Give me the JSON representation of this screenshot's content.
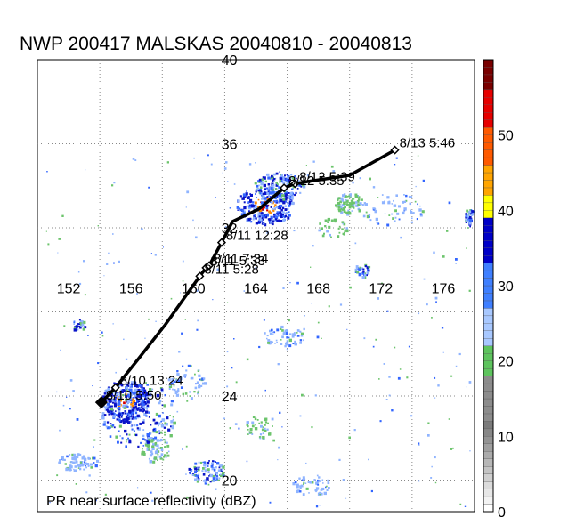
{
  "title": "NWP 200417 MALSKAS 20040810 - 20040813",
  "footer": "PR near surface reflectivity (dBZ)",
  "grid": {
    "lon_range": [
      150,
      178
    ],
    "lat_range": [
      18.5,
      40
    ],
    "lon_labels": [
      {
        "value": 152,
        "text": "152"
      },
      {
        "value": 156,
        "text": "156"
      },
      {
        "value": 160,
        "text": "160"
      },
      {
        "value": 164,
        "text": "164"
      },
      {
        "value": 168,
        "text": "168"
      },
      {
        "value": 172,
        "text": "172"
      },
      {
        "value": 176,
        "text": "176"
      }
    ],
    "lat_labels": [
      {
        "value": 40,
        "text": "40"
      },
      {
        "value": 36,
        "text": "36"
      },
      {
        "value": 32,
        "text": "32"
      },
      {
        "value": 24,
        "text": "24"
      },
      {
        "value": 20,
        "text": "20"
      }
    ],
    "lon_lines": [
      154,
      158,
      162,
      166,
      170,
      174
    ],
    "lat_lines": [
      20,
      24,
      28,
      32,
      36
    ]
  },
  "track": {
    "points": [
      {
        "lon": 154.1,
        "lat": 23.7
      },
      {
        "lon": 155.0,
        "lat": 24.4
      },
      {
        "lon": 156.4,
        "lat": 25.7
      },
      {
        "lon": 158.2,
        "lat": 27.4
      },
      {
        "lon": 160.4,
        "lat": 29.7
      },
      {
        "lon": 160.8,
        "lat": 30.1
      },
      {
        "lon": 161.0,
        "lat": 30.2
      },
      {
        "lon": 161.8,
        "lat": 31.3
      },
      {
        "lon": 162.5,
        "lat": 32.3
      },
      {
        "lon": 164.2,
        "lat": 32.9
      },
      {
        "lon": 165.8,
        "lat": 33.9
      },
      {
        "lon": 166.5,
        "lat": 34.1
      },
      {
        "lon": 167.3,
        "lat": 34.2
      },
      {
        "lon": 170.0,
        "lat": 34.5
      },
      {
        "lon": 172.9,
        "lat": 35.7
      }
    ],
    "markers": [
      {
        "lon": 154.1,
        "lat": 23.7,
        "label": "8/10 5:50",
        "label_text": "8/10"
      },
      {
        "lon": 155.0,
        "lat": 24.4,
        "label": "8/10 13:24"
      },
      {
        "lon": 160.4,
        "lat": 29.7,
        "label": "8/11 5:28"
      },
      {
        "lon": 160.8,
        "lat": 30.1,
        "label": "8/11 5:33"
      },
      {
        "lon": 161.0,
        "lat": 30.2,
        "label": "8/11 7:34"
      },
      {
        "lon": 161.8,
        "lat": 31.3,
        "label": "8/11 12:28"
      },
      {
        "lon": 165.8,
        "lat": 33.9,
        "label": "8/12 5:35"
      },
      {
        "lon": 166.5,
        "lat": 34.1,
        "label": "8/12 5:39"
      },
      {
        "lon": 172.9,
        "lat": 35.7,
        "label": "8/13 5:46"
      }
    ]
  },
  "colorbar": {
    "min": 0,
    "max": 60,
    "tick_labels": [
      {
        "value": 0,
        "text": "0"
      },
      {
        "value": 10,
        "text": "10"
      },
      {
        "value": 20,
        "text": "20"
      },
      {
        "value": 30,
        "text": "30"
      },
      {
        "value": 40,
        "text": "40"
      },
      {
        "value": 50,
        "text": "50"
      }
    ],
    "bands": [
      {
        "from": 0,
        "to": 12,
        "color": "#f0f0f0"
      },
      {
        "from": 12,
        "to": 18,
        "color": "#8c8c8c"
      },
      {
        "from": 18,
        "to": 22,
        "color": "#5ec45e"
      },
      {
        "from": 22,
        "to": 27,
        "color": "#a8c8ff"
      },
      {
        "from": 27,
        "to": 33,
        "color": "#3f7fff"
      },
      {
        "from": 33,
        "to": 39,
        "color": "#0000c8"
      },
      {
        "from": 39,
        "to": 42,
        "color": "#ffff00"
      },
      {
        "from": 42,
        "to": 46,
        "color": "#ffa500"
      },
      {
        "from": 46,
        "to": 51,
        "color": "#ff5a00"
      },
      {
        "from": 51,
        "to": 56,
        "color": "#e60000"
      },
      {
        "from": 56,
        "to": 60,
        "color": "#7a0000"
      }
    ]
  },
  "echo_colors": {
    "weak": "#8fb4ff",
    "moderate": "#3366ff",
    "strong": "#0a14c8",
    "green": "#6cc46c",
    "orange": "#ff8c00",
    "red": "#d40000"
  },
  "rain_clusters": [
    {
      "lon": 155.6,
      "lat": 23.8,
      "dlon": 1.5,
      "dlat": 1.0,
      "n": 260,
      "intensity": "strong"
    },
    {
      "lon": 156.5,
      "lat": 23.1,
      "dlon": 2.5,
      "dlat": 1.6,
      "n": 200,
      "intensity": "mixed"
    },
    {
      "lon": 164.6,
      "lat": 33.1,
      "dlon": 1.9,
      "dlat": 0.9,
      "n": 260,
      "intensity": "strong"
    },
    {
      "lon": 165.4,
      "lat": 34.0,
      "dlon": 1.6,
      "dlat": 0.7,
      "n": 160,
      "intensity": "mixed"
    },
    {
      "lon": 169.9,
      "lat": 33.2,
      "dlon": 0.9,
      "dlat": 0.5,
      "n": 80,
      "intensity": "green"
    },
    {
      "lon": 172.7,
      "lat": 32.9,
      "dlon": 2.0,
      "dlat": 0.8,
      "n": 60,
      "intensity": "weak"
    },
    {
      "lon": 159.5,
      "lat": 24.7,
      "dlon": 1.2,
      "dlat": 0.8,
      "n": 60,
      "intensity": "weak"
    },
    {
      "lon": 160.8,
      "lat": 20.4,
      "dlon": 1.2,
      "dlat": 0.6,
      "n": 90,
      "intensity": "mixed"
    },
    {
      "lon": 152.5,
      "lat": 20.9,
      "dlon": 1.3,
      "dlat": 0.4,
      "n": 70,
      "intensity": "weak"
    },
    {
      "lon": 165.8,
      "lat": 26.9,
      "dlon": 1.4,
      "dlat": 0.5,
      "n": 60,
      "intensity": "weak"
    },
    {
      "lon": 167.5,
      "lat": 19.8,
      "dlon": 1.2,
      "dlat": 0.5,
      "n": 50,
      "intensity": "weak"
    },
    {
      "lon": 177.6,
      "lat": 32.5,
      "dlon": 0.3,
      "dlat": 0.5,
      "n": 40,
      "intensity": "mixed"
    },
    {
      "lon": 152.6,
      "lat": 27.4,
      "dlon": 0.4,
      "dlat": 0.3,
      "n": 25,
      "intensity": "mixed"
    },
    {
      "lon": 157.5,
      "lat": 21.5,
      "dlon": 0.9,
      "dlat": 0.6,
      "n": 60,
      "intensity": "green"
    },
    {
      "lon": 164.2,
      "lat": 22.6,
      "dlon": 1.0,
      "dlat": 0.6,
      "n": 40,
      "intensity": "green"
    },
    {
      "lon": 170.8,
      "lat": 30.0,
      "dlon": 0.6,
      "dlat": 0.3,
      "n": 30,
      "intensity": "mixed"
    },
    {
      "lon": 168.8,
      "lat": 32.0,
      "dlon": 1.0,
      "dlat": 0.5,
      "n": 30,
      "intensity": "green"
    }
  ]
}
